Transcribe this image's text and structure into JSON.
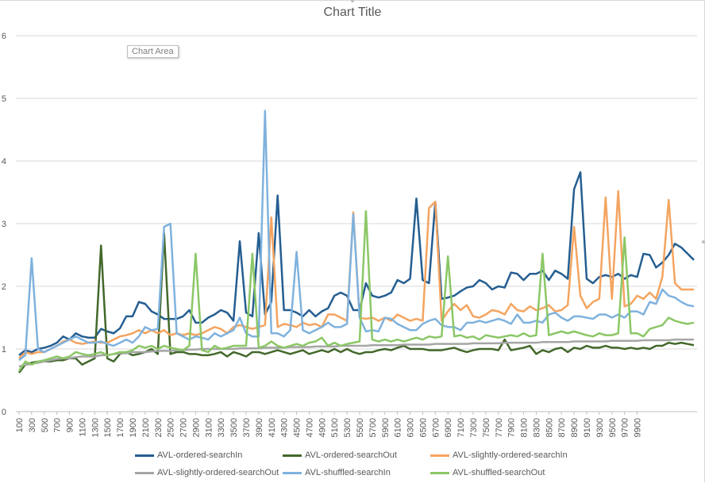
{
  "chart": {
    "title": "Chart Title",
    "tooltip": "Chart Area"
  },
  "chart_data": {
    "type": "line",
    "title": "Chart Title",
    "xlabel": "",
    "ylabel": "",
    "ylim": [
      0,
      6
    ],
    "yticks": [
      0,
      1,
      2,
      3,
      4,
      5,
      6
    ],
    "grid": true,
    "legend_position": "bottom",
    "x_start": 100,
    "x_step": 100,
    "x_tick_labels": [
      "100",
      "300",
      "500",
      "700",
      "900",
      "1100",
      "1300",
      "1500",
      "1700",
      "1900",
      "2100",
      "2300",
      "2500",
      "2700",
      "2900",
      "3100",
      "3300",
      "3500",
      "3700",
      "3900",
      "4100",
      "4300",
      "4500",
      "4700",
      "4900",
      "5100",
      "5300",
      "5500",
      "5700",
      "5900",
      "6100",
      "6300",
      "6500",
      "6700",
      "6900",
      "7100",
      "7300",
      "7500",
      "7700",
      "7900",
      "8100",
      "8300",
      "8500",
      "8700",
      "8900",
      "9100",
      "9300",
      "9500",
      "9700",
      "9900"
    ],
    "series": [
      {
        "name": "AVL-ordered-searchIn",
        "color": "#255e91",
        "values": [
          0.9,
          0.98,
          0.95,
          1.0,
          1.02,
          1.05,
          1.1,
          1.2,
          1.15,
          1.25,
          1.2,
          1.18,
          1.18,
          1.32,
          1.28,
          1.25,
          1.33,
          1.52,
          1.52,
          1.75,
          1.72,
          1.6,
          1.55,
          1.48,
          1.48,
          1.48,
          1.52,
          1.62,
          1.42,
          1.42,
          1.5,
          1.55,
          1.62,
          1.58,
          1.45,
          2.72,
          1.58,
          1.52,
          2.85,
          1.55,
          1.75,
          3.45,
          1.62,
          1.62,
          1.58,
          1.52,
          1.62,
          1.52,
          1.6,
          1.65,
          1.85,
          1.9,
          1.85,
          1.62,
          1.62,
          2.05,
          1.85,
          1.82,
          1.85,
          1.9,
          2.1,
          2.05,
          2.12,
          3.4,
          2.1,
          2.05,
          3.35,
          1.8,
          1.82,
          1.85,
          1.92,
          1.98,
          2.0,
          2.1,
          2.05,
          1.95,
          2.0,
          1.98,
          2.22,
          2.2,
          2.1,
          2.2,
          2.2,
          2.25,
          2.1,
          2.25,
          2.2,
          2.12,
          3.55,
          3.82,
          2.12,
          2.05,
          2.15,
          2.18,
          2.15,
          2.2,
          2.12,
          2.18,
          2.15,
          2.52,
          2.5,
          2.3,
          2.38,
          2.5,
          2.68,
          2.62,
          2.52,
          2.42
        ]
      },
      {
        "name": "AVL-ordered-searchOut",
        "color": "#43682b",
        "values": [
          0.62,
          0.75,
          0.78,
          0.8,
          0.8,
          0.8,
          0.82,
          0.82,
          0.85,
          0.85,
          0.75,
          0.8,
          0.85,
          2.65,
          0.85,
          0.8,
          0.92,
          0.95,
          0.9,
          0.92,
          0.95,
          1.0,
          0.92,
          2.85,
          0.92,
          0.95,
          0.95,
          0.92,
          0.92,
          0.9,
          0.9,
          0.92,
          0.95,
          0.88,
          0.95,
          0.92,
          0.88,
          0.95,
          0.95,
          0.92,
          0.95,
          0.98,
          0.95,
          0.92,
          0.95,
          0.98,
          0.92,
          0.95,
          0.98,
          0.95,
          1.0,
          0.95,
          1.0,
          0.95,
          0.92,
          0.95,
          0.95,
          0.98,
          1.0,
          0.98,
          1.02,
          1.05,
          1.0,
          1.0,
          1.0,
          0.98,
          0.98,
          0.98,
          1.0,
          1.02,
          0.98,
          0.95,
          0.98,
          1.0,
          1.0,
          1.0,
          0.98,
          1.15,
          0.98,
          1.0,
          1.02,
          1.05,
          0.92,
          0.98,
          0.95,
          1.0,
          1.02,
          0.95,
          1.02,
          1.0,
          1.05,
          1.02,
          1.02,
          1.05,
          1.02,
          1.02,
          1.0,
          1.02,
          1.0,
          1.02,
          1.0,
          1.05,
          1.05,
          1.1,
          1.08,
          1.1,
          1.08,
          1.06
        ]
      },
      {
        "name": "AVL-slightly-ordered-searchIn",
        "color": "#f4a460",
        "values": [
          0.85,
          0.95,
          0.92,
          0.95,
          0.95,
          1.0,
          1.05,
          1.12,
          1.15,
          1.1,
          1.08,
          1.1,
          1.12,
          1.1,
          1.1,
          1.15,
          1.2,
          1.22,
          1.25,
          1.3,
          1.25,
          1.3,
          1.25,
          1.3,
          1.22,
          1.25,
          1.22,
          1.25,
          1.22,
          1.25,
          1.3,
          1.35,
          1.32,
          1.25,
          1.35,
          1.38,
          1.35,
          1.32,
          1.35,
          1.38,
          3.1,
          1.35,
          1.4,
          1.38,
          1.35,
          1.42,
          1.38,
          1.4,
          1.35,
          1.55,
          1.55,
          1.5,
          1.45,
          3.18,
          1.5,
          1.48,
          1.5,
          1.45,
          1.5,
          1.45,
          1.55,
          1.5,
          1.45,
          1.48,
          1.45,
          3.25,
          3.35,
          1.45,
          1.6,
          1.72,
          1.62,
          1.7,
          1.52,
          1.5,
          1.55,
          1.62,
          1.6,
          1.55,
          1.72,
          1.62,
          1.6,
          1.68,
          1.62,
          1.65,
          1.7,
          1.6,
          1.62,
          1.7,
          2.95,
          1.85,
          1.65,
          1.75,
          1.8,
          3.42,
          1.8,
          3.52,
          1.68,
          1.72,
          1.85,
          1.8,
          1.9,
          1.8,
          2.15,
          3.38,
          2.05,
          1.95,
          1.95,
          1.95
        ]
      },
      {
        "name": "AVL-slightly-ordered-searchOut",
        "color": "#a5a5a5",
        "values": [
          0.72,
          0.75,
          0.76,
          0.78,
          0.8,
          0.82,
          0.84,
          0.85,
          0.85,
          0.87,
          0.88,
          0.88,
          0.88,
          0.9,
          0.9,
          0.92,
          0.93,
          0.93,
          0.95,
          0.95,
          0.95,
          0.96,
          0.97,
          0.97,
          0.97,
          0.98,
          0.98,
          0.99,
          0.99,
          1.0,
          1.0,
          1.0,
          1.0,
          1.0,
          1.0,
          1.01,
          1.01,
          1.01,
          1.01,
          1.02,
          1.02,
          1.02,
          1.02,
          1.03,
          1.03,
          1.03,
          1.03,
          1.04,
          1.04,
          1.04,
          1.04,
          1.05,
          1.05,
          1.05,
          1.05,
          1.05,
          1.06,
          1.06,
          1.06,
          1.06,
          1.06,
          1.07,
          1.07,
          1.07,
          1.07,
          1.07,
          1.08,
          1.08,
          1.08,
          1.08,
          1.08,
          1.08,
          1.09,
          1.09,
          1.09,
          1.09,
          1.09,
          1.1,
          1.1,
          1.1,
          1.1,
          1.1,
          1.1,
          1.11,
          1.11,
          1.11,
          1.11,
          1.11,
          1.12,
          1.12,
          1.12,
          1.12,
          1.12,
          1.12,
          1.13,
          1.13,
          1.13,
          1.13,
          1.13,
          1.14,
          1.14,
          1.14,
          1.14,
          1.14,
          1.15,
          1.15,
          1.15,
          1.15
        ]
      },
      {
        "name": "AVL-shuffled-searchIn",
        "color": "#7fb2de",
        "values": [
          0.82,
          0.9,
          2.45,
          1.0,
          0.95,
          1.0,
          1.05,
          1.1,
          1.15,
          1.2,
          1.15,
          1.1,
          1.1,
          1.12,
          1.08,
          1.05,
          1.1,
          1.15,
          1.1,
          1.2,
          1.35,
          1.3,
          1.32,
          2.95,
          3.0,
          1.25,
          1.2,
          1.15,
          1.2,
          1.18,
          1.15,
          1.25,
          1.2,
          1.25,
          1.3,
          1.5,
          1.25,
          1.2,
          1.2,
          4.8,
          1.25,
          1.25,
          1.2,
          1.3,
          2.55,
          1.3,
          1.25,
          1.3,
          1.35,
          1.42,
          1.35,
          1.35,
          1.4,
          3.15,
          1.5,
          1.28,
          1.3,
          1.28,
          1.5,
          1.48,
          1.4,
          1.35,
          1.3,
          1.3,
          1.4,
          1.45,
          1.48,
          1.38,
          1.35,
          1.35,
          1.3,
          1.42,
          1.42,
          1.45,
          1.42,
          1.45,
          1.48,
          1.45,
          1.4,
          1.55,
          1.42,
          1.42,
          1.45,
          1.42,
          1.55,
          1.58,
          1.5,
          1.45,
          1.52,
          1.52,
          1.5,
          1.48,
          1.55,
          1.55,
          1.5,
          1.55,
          1.5,
          1.6,
          1.6,
          1.55,
          1.75,
          1.72,
          1.95,
          1.85,
          1.82,
          1.75,
          1.7,
          1.68
        ]
      },
      {
        "name": "AVL-shuffled-searchOut",
        "color": "#8bc766",
        "values": [
          0.65,
          0.8,
          0.75,
          0.8,
          0.82,
          0.85,
          0.88,
          0.85,
          0.88,
          0.95,
          0.92,
          0.9,
          0.92,
          0.95,
          0.9,
          0.92,
          0.95,
          0.95,
          0.98,
          1.05,
          1.02,
          1.05,
          1.0,
          1.05,
          1.02,
          1.0,
          0.98,
          1.05,
          2.52,
          0.98,
          0.95,
          1.05,
          1.0,
          1.02,
          1.05,
          1.05,
          1.05,
          2.52,
          1.02,
          1.05,
          1.12,
          1.05,
          1.02,
          1.05,
          1.08,
          1.05,
          1.1,
          1.12,
          1.18,
          1.05,
          1.1,
          1.05,
          1.08,
          1.1,
          1.12,
          3.2,
          1.15,
          1.12,
          1.15,
          1.12,
          1.15,
          1.12,
          1.15,
          1.18,
          1.15,
          1.2,
          1.18,
          1.2,
          2.48,
          1.2,
          1.22,
          1.18,
          1.2,
          1.15,
          1.22,
          1.2,
          1.18,
          1.2,
          1.22,
          1.2,
          1.25,
          1.2,
          1.22,
          2.52,
          1.22,
          1.25,
          1.28,
          1.25,
          1.28,
          1.25,
          1.22,
          1.2,
          1.25,
          1.22,
          1.22,
          1.25,
          2.78,
          1.25,
          1.25,
          1.2,
          1.32,
          1.35,
          1.38,
          1.5,
          1.45,
          1.42,
          1.4,
          1.42
        ]
      }
    ]
  }
}
